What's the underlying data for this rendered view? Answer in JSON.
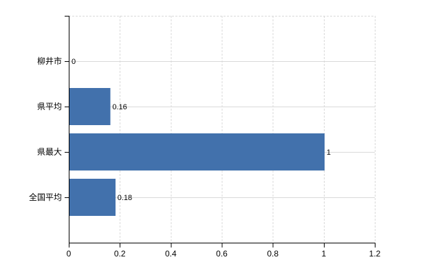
{
  "chart_data": {
    "type": "bar",
    "orientation": "horizontal",
    "title": "",
    "xlabel": "",
    "ylabel": "",
    "categories": [
      "柳井市",
      "県平均",
      "県最大",
      "全国平均"
    ],
    "values": [
      0,
      0.16,
      1,
      0.18
    ],
    "value_labels": [
      "0",
      "0.16",
      "1",
      "0.18"
    ],
    "xlim": [
      0,
      1.2
    ],
    "xticks": [
      0,
      0.2,
      0.4,
      0.6,
      0.8,
      1,
      1.2
    ],
    "xtick_labels": [
      "0",
      "0.2",
      "0.4",
      "0.6",
      "0.8",
      "1",
      "1.2"
    ],
    "grid": true,
    "legend": false,
    "colors": {
      "bar": "#4271ac",
      "grid": "#d9d9d9",
      "axis": "#000000",
      "text": "#000000",
      "background": "#ffffff"
    }
  }
}
